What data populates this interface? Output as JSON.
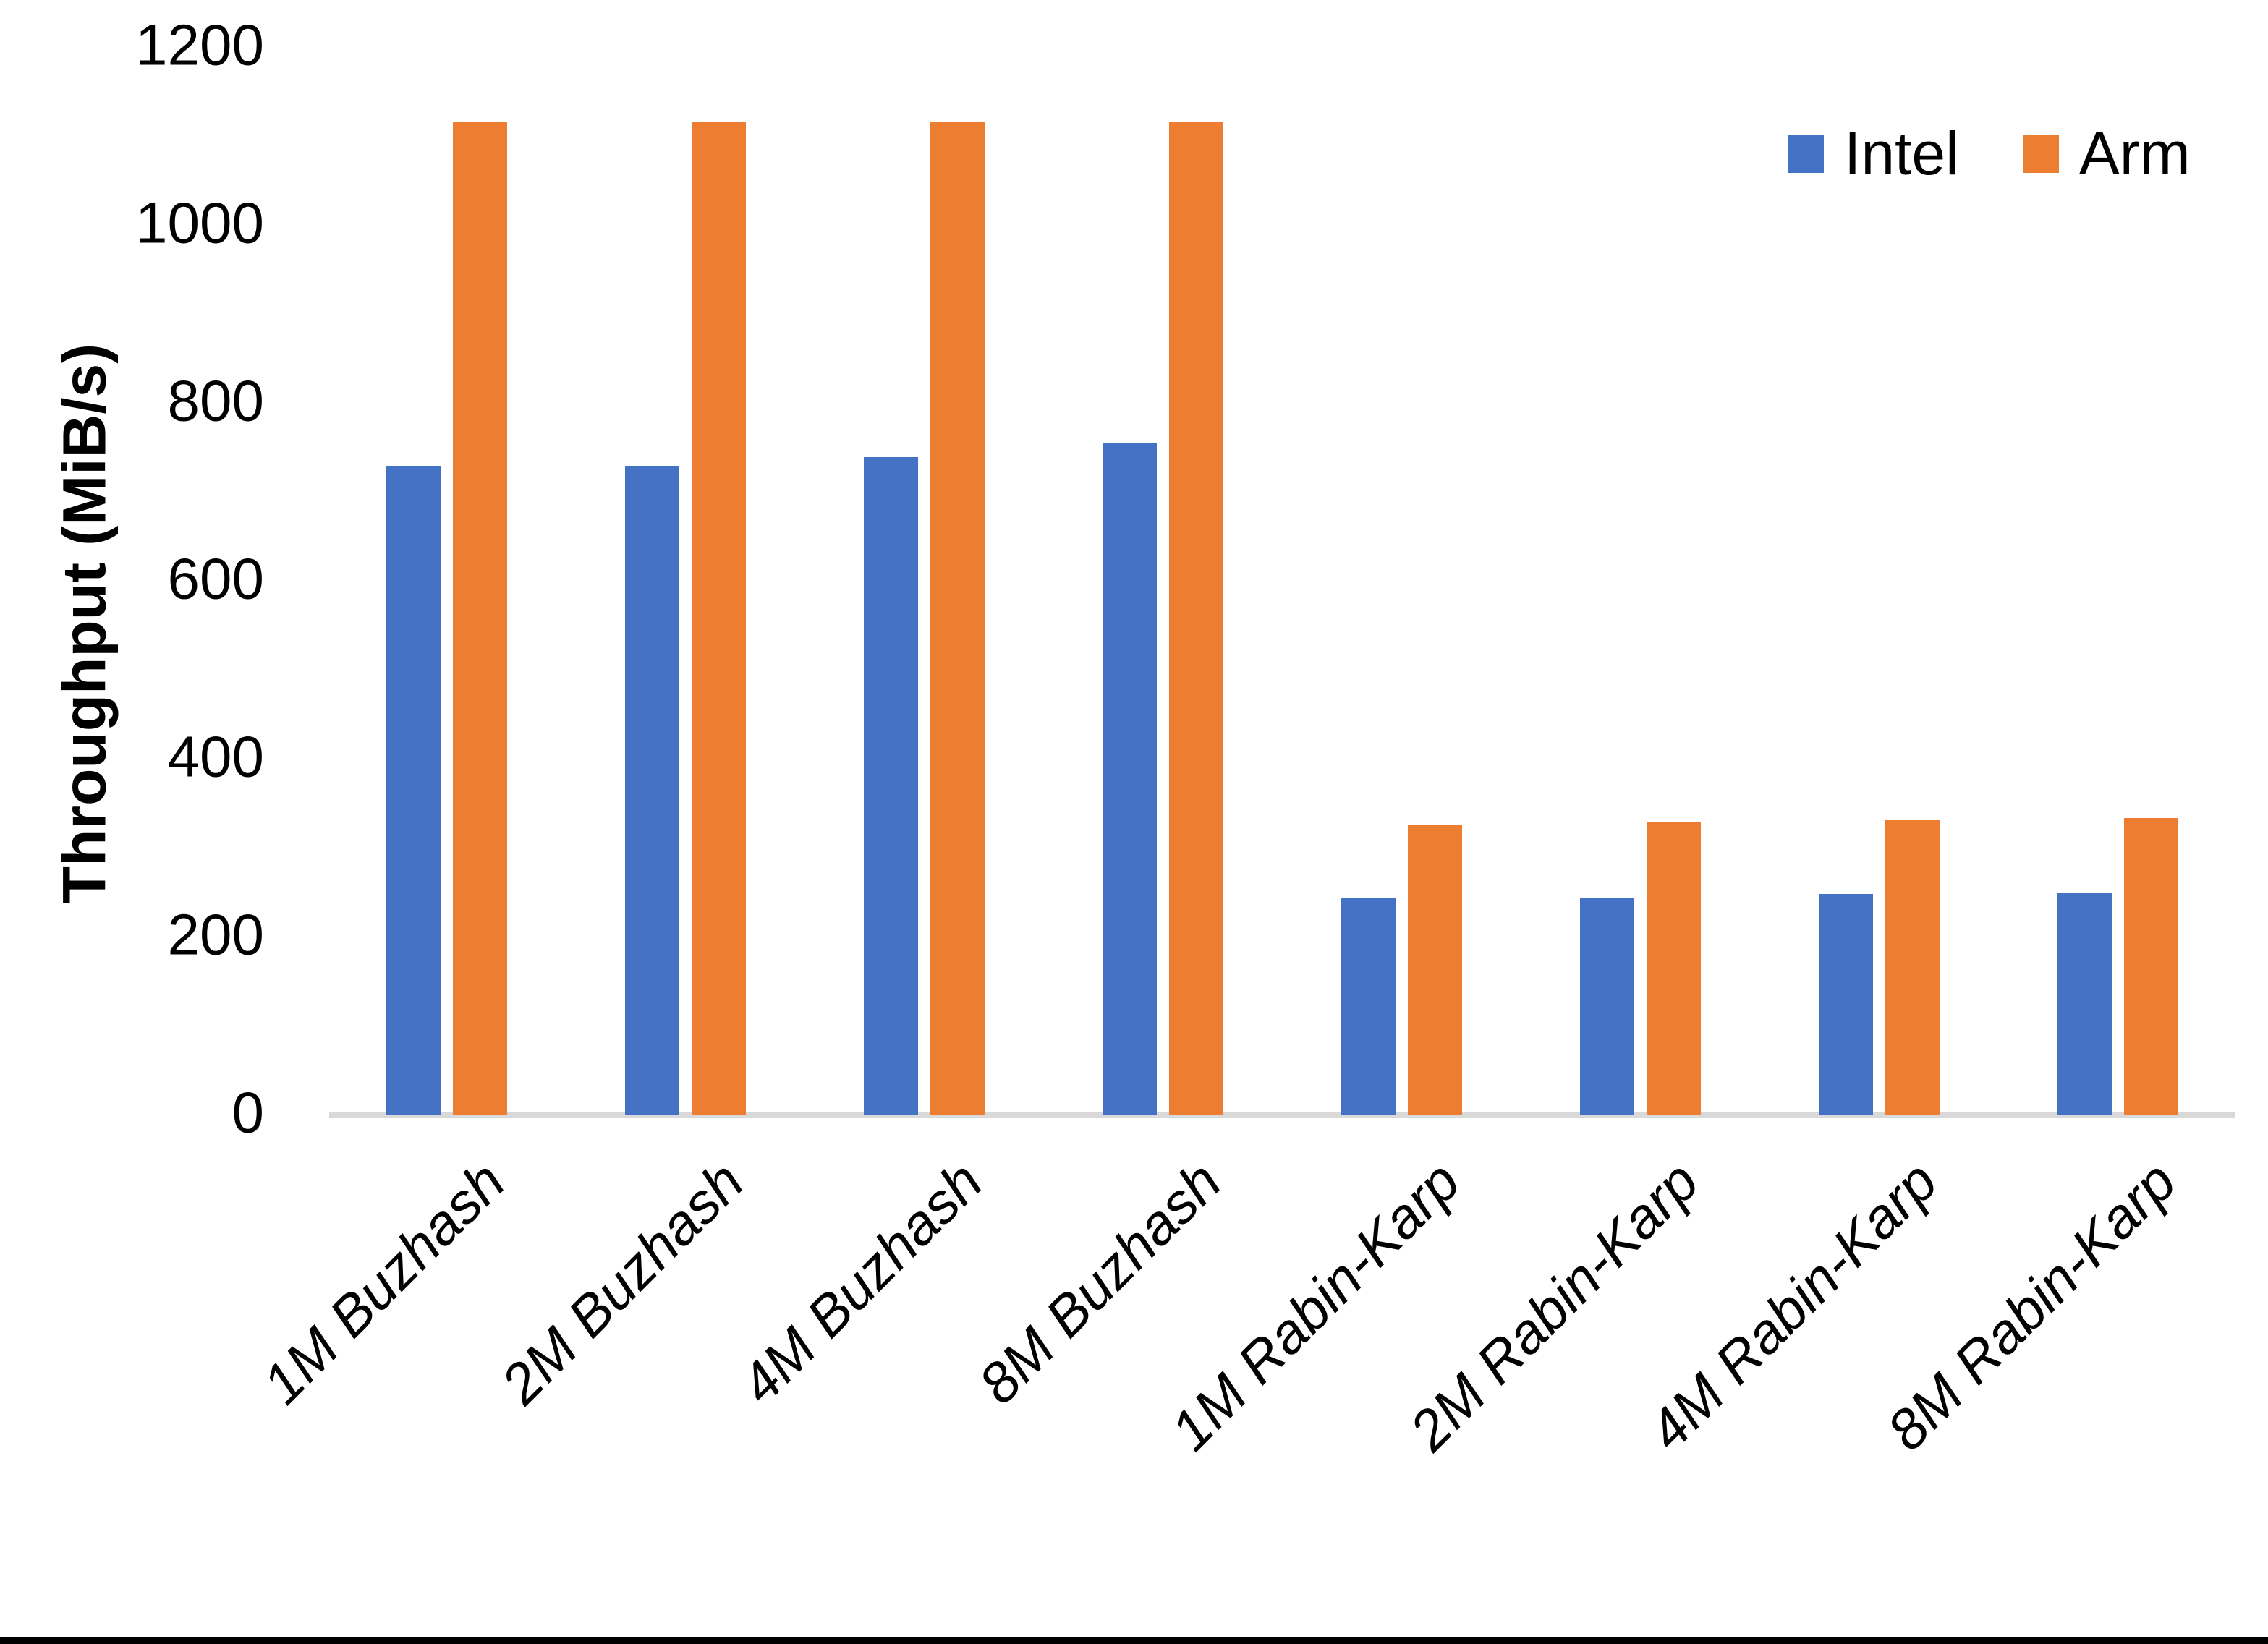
{
  "chart_data": {
    "type": "bar",
    "title": "",
    "xlabel": "",
    "ylabel": "Throughput (MiB/s)",
    "ylim": [
      0,
      1200
    ],
    "yticks": [
      0,
      200,
      400,
      600,
      800,
      1000,
      1200
    ],
    "y_tick_labels": [
      "0",
      "200",
      "400",
      "600",
      "800",
      "1000",
      "1200"
    ],
    "grid": false,
    "legend_position": "top-right",
    "categories": [
      "1M Buzhash",
      "2M Buzhash",
      "4M Buzhash",
      "8M Buzhash",
      "1M Rabin-Karp",
      "2M Rabin-Karp",
      "4M Rabin-Karp",
      "8M Rabin-Karp"
    ],
    "series": [
      {
        "name": "Intel",
        "color": "#4472C4",
        "values": [
          730,
          730,
          740,
          755,
          245,
          245,
          249,
          250
        ]
      },
      {
        "name": "Arm",
        "color": "#ED7D31",
        "values": [
          1116,
          1116,
          1116,
          1116,
          326,
          329,
          332,
          334
        ]
      }
    ]
  },
  "legend": {
    "items": [
      {
        "label": "Intel",
        "color": "#4472C4"
      },
      {
        "label": "Arm",
        "color": "#ED7D31"
      }
    ]
  },
  "colors": {
    "background": "#FFFFFF",
    "text": "#000000",
    "axis_line": "#D9D9D9",
    "bottom_edge_bar": "#000000"
  }
}
